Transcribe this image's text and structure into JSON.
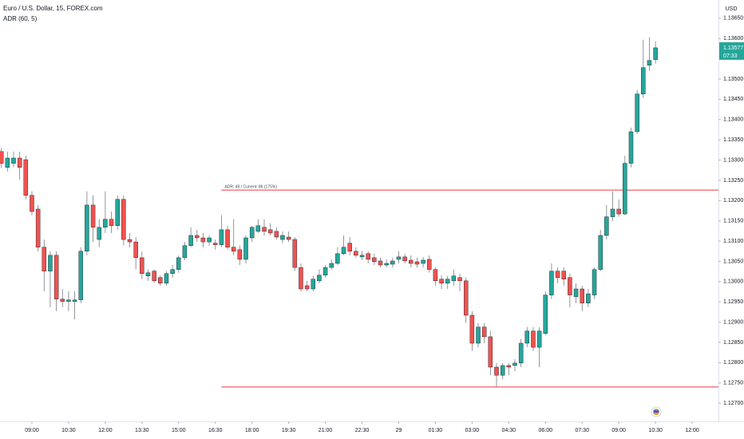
{
  "chart_data": {
    "type": "candlestick",
    "title": "Euro / U.S. Dollar, 15, FOREX.com",
    "indicator": "ADR (60, 5)",
    "currency": "USD",
    "countdown": "07:33",
    "up_color": "#26a69a",
    "down_color": "#ef5350",
    "open": [
      1.13321,
      1.13282,
      1.13292,
      1.13305,
      1.13301,
      1.13213,
      1.13179,
      1.13085,
      1.13026,
      1.13065,
      1.12957,
      1.12951,
      1.12951,
      1.12955,
      1.13075,
      1.13189,
      1.13104,
      1.13134,
      1.13154,
      1.13138,
      1.13203,
      1.13104,
      1.13098,
      1.13059,
      1.13014,
      1.13026,
      1.1301,
      1.12996,
      1.1302,
      1.1303,
      1.13059,
      1.13089,
      1.13114,
      1.13108,
      1.13098,
      1.13095,
      1.13091,
      1.13128,
      1.13085,
      1.13079,
      1.13055,
      1.13108,
      1.13124,
      1.13134,
      1.13128,
      1.13124,
      1.13104,
      1.1311,
      1.13104,
      1.13035,
      1.1299,
      1.12982,
      1.13002,
      1.13016,
      1.13035,
      1.13045,
      1.13069,
      1.13095,
      1.13075,
      1.13061,
      1.13069,
      1.13059,
      1.13051,
      1.13041,
      1.13043,
      1.13055,
      1.13061,
      1.13053,
      1.13049,
      1.13045,
      1.13055,
      1.1303,
      1.13006,
      1.12996,
      1.13002,
      1.1301,
      1.13002,
      1.12917,
      1.12848,
      1.12888,
      1.12864,
      1.12789,
      1.12769,
      1.12793,
      1.12793,
      1.12799,
      1.12848,
      1.12878,
      1.12838,
      1.12872,
      1.12967,
      1.13026,
      1.13026,
      1.1301,
      1.12963,
      1.12982,
      1.12947,
      1.12967,
      1.1303,
      1.13114,
      1.1316,
      1.13179,
      1.13167,
      1.13292,
      1.1337,
      1.13463,
      1.13534,
      1.13548
    ],
    "high": [
      1.1333,
      1.13321,
      1.13321,
      1.13321,
      1.13311,
      1.13223,
      1.13189,
      1.13104,
      1.13075,
      1.13075,
      1.12982,
      1.12976,
      1.12976,
      1.13085,
      1.13223,
      1.13213,
      1.13154,
      1.13223,
      1.13173,
      1.13213,
      1.13213,
      1.1312,
      1.1311,
      1.13075,
      1.1303,
      1.1303,
      1.13016,
      1.13026,
      1.13041,
      1.13065,
      1.13098,
      1.13134,
      1.13128,
      1.1312,
      1.13114,
      1.13104,
      1.13164,
      1.13138,
      1.13154,
      1.13089,
      1.13114,
      1.13138,
      1.13154,
      1.13154,
      1.13144,
      1.13134,
      1.13124,
      1.13124,
      1.1311,
      1.13045,
      1.13002,
      1.13014,
      1.1303,
      1.13041,
      1.13055,
      1.13085,
      1.13114,
      1.1311,
      1.13085,
      1.13075,
      1.13075,
      1.13069,
      1.13059,
      1.13055,
      1.13059,
      1.13075,
      1.13069,
      1.13065,
      1.13059,
      1.13061,
      1.13065,
      1.13035,
      1.13016,
      1.13014,
      1.1303,
      1.1302,
      1.1301,
      1.12927,
      1.12898,
      1.12898,
      1.12878,
      1.12799,
      1.12799,
      1.12799,
      1.12809,
      1.12858,
      1.12888,
      1.12888,
      1.12888,
      1.12976,
      1.13045,
      1.13035,
      1.13035,
      1.1302,
      1.12996,
      1.1299,
      1.12982,
      1.13035,
      1.13128,
      1.13189,
      1.13223,
      1.13203,
      1.13311,
      1.1338,
      1.13473,
      1.13597,
      1.13603,
      1.13593
    ],
    "low": [
      1.1328,
      1.13272,
      1.13282,
      1.13252,
      1.13203,
      1.13164,
      1.13075,
      1.12976,
      1.12937,
      1.12927,
      1.12937,
      1.12927,
      1.12907,
      1.12947,
      1.13065,
      1.13098,
      1.13085,
      1.1312,
      1.1312,
      1.13128,
      1.13089,
      1.13085,
      1.1303,
      1.13006,
      1.13002,
      1.12996,
      1.1299,
      1.1299,
      1.1301,
      1.13022,
      1.13053,
      1.13085,
      1.13098,
      1.13085,
      1.13089,
      1.13079,
      1.13085,
      1.13079,
      1.13065,
      1.13041,
      1.13045,
      1.13098,
      1.1312,
      1.13114,
      1.13114,
      1.13104,
      1.13095,
      1.13098,
      1.13026,
      1.12976,
      1.12976,
      1.12976,
      1.12996,
      1.1301,
      1.1303,
      1.13041,
      1.13065,
      1.13065,
      1.13059,
      1.13053,
      1.13045,
      1.13041,
      1.13035,
      1.13035,
      1.13035,
      1.13045,
      1.13045,
      1.13035,
      1.13035,
      1.13035,
      1.13022,
      1.1299,
      1.12982,
      1.12982,
      1.1299,
      1.12976,
      1.12898,
      1.12829,
      1.12838,
      1.12848,
      1.12769,
      1.1274,
      1.12759,
      1.12769,
      1.12779,
      1.12789,
      1.12838,
      1.12829,
      1.12789,
      1.12868,
      1.12957,
      1.12996,
      1.1299,
      1.12937,
      1.12947,
      1.12927,
      1.12937,
      1.12957,
      1.13026,
      1.13104,
      1.1315,
      1.1316,
      1.13164,
      1.13282,
      1.13365,
      1.13453,
      1.1352,
      1.13538
    ],
    "close": [
      1.13292,
      1.13305,
      1.13305,
      1.13282,
      1.13213,
      1.13173,
      1.13085,
      1.13026,
      1.13065,
      1.12957,
      1.12951,
      1.12955,
      1.12955,
      1.13075,
      1.13189,
      1.13134,
      1.13134,
      1.13154,
      1.13138,
      1.13203,
      1.13104,
      1.13098,
      1.13059,
      1.1302,
      1.13022,
      1.13002,
      1.12996,
      1.1302,
      1.1303,
      1.13059,
      1.13089,
      1.13114,
      1.13108,
      1.13098,
      1.13108,
      1.13091,
      1.13128,
      1.13085,
      1.13075,
      1.13055,
      1.13108,
      1.13134,
      1.13138,
      1.13124,
      1.1312,
      1.1311,
      1.13114,
      1.13104,
      1.13035,
      1.12982,
      1.12982,
      1.13006,
      1.13016,
      1.13035,
      1.13045,
      1.13069,
      1.13085,
      1.13075,
      1.13065,
      1.13065,
      1.13055,
      1.13049,
      1.13041,
      1.13045,
      1.13051,
      1.13061,
      1.13051,
      1.13045,
      1.13043,
      1.13053,
      1.1303,
      1.13002,
      1.12996,
      1.13006,
      1.13014,
      1.13002,
      1.12917,
      1.12848,
      1.12888,
      1.12864,
      1.12789,
      1.12769,
      1.12793,
      1.12789,
      1.12799,
      1.12848,
      1.12878,
      1.12838,
      1.12878,
      1.12967,
      1.13026,
      1.1301,
      1.13006,
      1.12967,
      1.12982,
      1.12947,
      1.1297,
      1.1303,
      1.13114,
      1.1316,
      1.13179,
      1.13167,
      1.13292,
      1.1337,
      1.13463,
      1.13528,
      1.13546,
      1.13577
    ],
    "adr": {
      "label": "ADR: 49 / Current: 86 (175%)",
      "color": "#f23645",
      "from": 36,
      "high": 1.13226,
      "low": 1.1274
    },
    "xlim": [
      -0.22,
      117.3
    ],
    "ylim": [
      1.12655,
      1.13695
    ],
    "xticks": [
      {
        "value": 5,
        "label": "09:00"
      },
      {
        "value": 11,
        "label": "10:30"
      },
      {
        "value": 17,
        "label": "12:00"
      },
      {
        "value": 23,
        "label": "13:30"
      },
      {
        "value": 29,
        "label": "15:00"
      },
      {
        "value": 35,
        "label": "16:30"
      },
      {
        "value": 41,
        "label": "18:00"
      },
      {
        "value": 47,
        "label": "19:30"
      },
      {
        "value": 53,
        "label": "21:00"
      },
      {
        "value": 59,
        "label": "22:30"
      },
      {
        "value": 65,
        "label": "29"
      },
      {
        "value": 71,
        "label": "01:30"
      },
      {
        "value": 77,
        "label": "03:00"
      },
      {
        "value": 83,
        "label": "04:30"
      },
      {
        "value": 89,
        "label": "06:00"
      },
      {
        "value": 95,
        "label": "07:30"
      },
      {
        "value": 101,
        "label": "09:00"
      },
      {
        "value": 107,
        "label": "10:30"
      },
      {
        "value": 113,
        "label": "12:00"
      }
    ],
    "yticks": [
      {
        "value": 1.127,
        "label": "1.12700"
      },
      {
        "value": 1.1275,
        "label": "1.12750"
      },
      {
        "value": 1.128,
        "label": "1.12800"
      },
      {
        "value": 1.1285,
        "label": "1.12850"
      },
      {
        "value": 1.129,
        "label": "1.12900"
      },
      {
        "value": 1.1295,
        "label": "1.12950"
      },
      {
        "value": 1.13,
        "label": "1.13000"
      },
      {
        "value": 1.1305,
        "label": "1.13050"
      },
      {
        "value": 1.131,
        "label": "1.13100"
      },
      {
        "value": 1.1315,
        "label": "1.13150"
      },
      {
        "value": 1.132,
        "label": "1.13200"
      },
      {
        "value": 1.1325,
        "label": "1.13250"
      },
      {
        "value": 1.133,
        "label": "1.13300"
      },
      {
        "value": 1.1335,
        "label": "1.13350"
      },
      {
        "value": 1.134,
        "label": "1.13400"
      },
      {
        "value": 1.1345,
        "label": "1.13450"
      },
      {
        "value": 1.135,
        "label": "1.13500"
      },
      {
        "value": 1.136,
        "label": "1.13600"
      },
      {
        "value": 1.1365,
        "label": "1.13650"
      }
    ]
  }
}
